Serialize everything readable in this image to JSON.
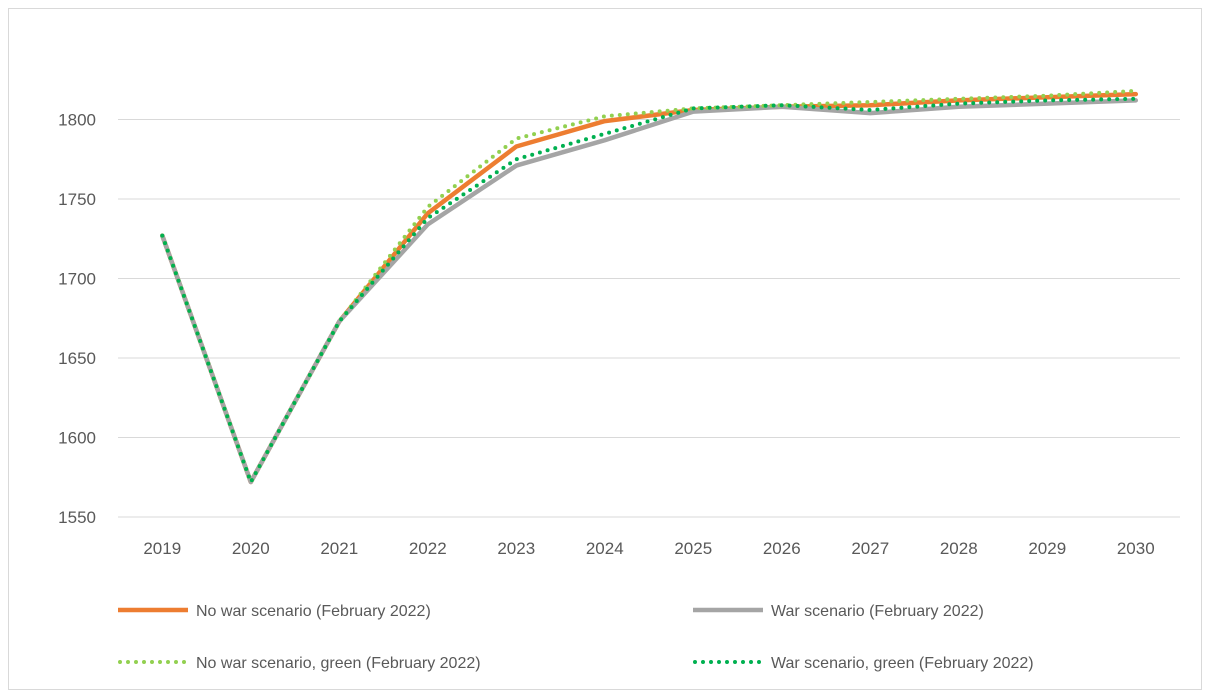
{
  "chart_data": {
    "type": "line",
    "title": "",
    "xlabel": "",
    "ylabel": "",
    "categories": [
      "2019",
      "2020",
      "2021",
      "2022",
      "2023",
      "2024",
      "2025",
      "2026",
      "2027",
      "2028",
      "2029",
      "2030"
    ],
    "ylim": [
      1550,
      1850
    ],
    "yticks": [
      1550,
      1600,
      1650,
      1700,
      1750,
      1800
    ],
    "grid": true,
    "legend_position": "bottom",
    "series": [
      {
        "name": "No war scenario (February 2022)",
        "color": "#ED7D31",
        "style": "solid",
        "values": [
          1727,
          1572,
          1673,
          1741,
          1783,
          1799,
          1806,
          1808,
          1809,
          1812,
          1814,
          1816
        ]
      },
      {
        "name": "War scenario (February 2022)",
        "color": "#A5A5A5",
        "style": "solid",
        "values": [
          1727,
          1572,
          1673,
          1734,
          1771,
          1787,
          1805,
          1808,
          1804,
          1808,
          1810,
          1812
        ]
      },
      {
        "name": "No war scenario, green (February 2022)",
        "color": "#92D050",
        "style": "dotted",
        "values": [
          1727,
          1572,
          1673,
          1745,
          1788,
          1802,
          1807,
          1809,
          1811,
          1813,
          1815,
          1818
        ]
      },
      {
        "name": "War scenario, green (February 2022)",
        "color": "#00B050",
        "style": "dotted",
        "values": [
          1727,
          1572,
          1673,
          1738,
          1775,
          1791,
          1807,
          1809,
          1806,
          1810,
          1812,
          1813
        ]
      }
    ]
  }
}
